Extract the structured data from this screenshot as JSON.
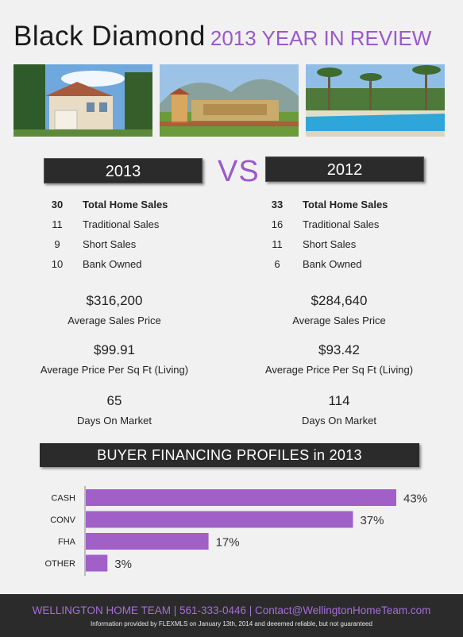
{
  "header": {
    "title": "Black Diamond",
    "subtitle": "2013 YEAR IN REVIEW"
  },
  "vs_label": "VS",
  "columns": [
    {
      "year": "2013",
      "sales": [
        {
          "count": "30",
          "label": "Total Home Sales"
        },
        {
          "count": "11",
          "label": "Traditional Sales"
        },
        {
          "count": "9",
          "label": "Short Sales"
        },
        {
          "count": "10",
          "label": "Bank Owned"
        }
      ],
      "metrics": [
        {
          "value": "$316,200",
          "caption": "Average Sales Price"
        },
        {
          "value": "$99.91",
          "caption": "Average Price Per Sq Ft (Living)"
        },
        {
          "value": "65",
          "caption": "Days On Market"
        }
      ]
    },
    {
      "year": "2012",
      "sales": [
        {
          "count": "33",
          "label": "Total Home Sales"
        },
        {
          "count": "16",
          "label": "Traditional Sales"
        },
        {
          "count": "11",
          "label": "Short Sales"
        },
        {
          "count": "6",
          "label": "Bank Owned"
        }
      ],
      "metrics": [
        {
          "value": "$284,640",
          "caption": "Average Sales Price"
        },
        {
          "value": "$93.42",
          "caption": "Average Price Per Sq Ft (Living)"
        },
        {
          "value": "114",
          "caption": "Days On Market"
        }
      ]
    }
  ],
  "chart_data": {
    "type": "bar",
    "orientation": "horizontal",
    "title": "BUYER FINANCING PROFILES in 2013",
    "categories": [
      "CASH",
      "CONV",
      "FHA",
      "OTHER"
    ],
    "values": [
      43,
      37,
      17,
      3
    ],
    "value_labels": [
      "43%",
      "37%",
      "17%",
      "3%"
    ],
    "unit": "%",
    "bar_color": "#a060c8",
    "xlim": [
      0,
      43
    ],
    "grid": false,
    "legend": "none"
  },
  "footer": {
    "contact": "WELLINGTON HOME TEAM | 561-333-0446 | Contact@WellingtonHomeTeam.com",
    "disclaimer": "Information provided by FLEXMLS on January 13th, 2014 and deeemed reliable, but not guaranteed"
  },
  "colors": {
    "accent": "#9b59c9",
    "dark": "#2b2b2b",
    "background": "#f1f1f2"
  }
}
